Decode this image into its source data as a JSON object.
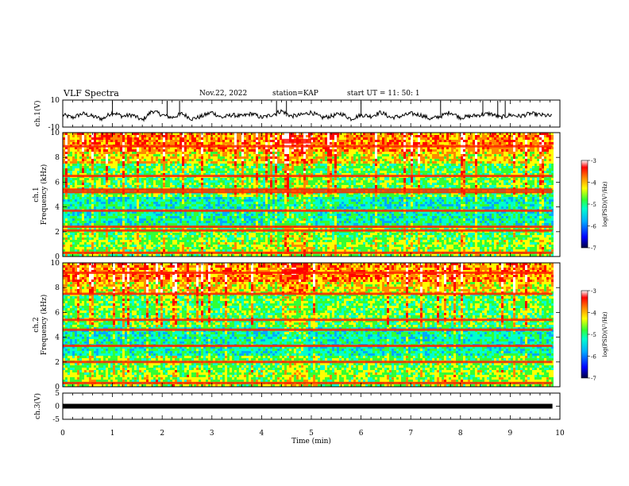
{
  "header": {
    "title": "VLF Spectra",
    "date": "Nov.22, 2022",
    "station": "station=KAP",
    "start": "start  UT =   11: 50: 1"
  },
  "chart_data": [
    {
      "type": "line",
      "panel": "ch1-waveform",
      "ylabel": "ch.1(V)",
      "ylim": [
        -10,
        10
      ],
      "y_ticks": [
        "10",
        "-10"
      ],
      "x_range_min": [
        0,
        9.85
      ],
      "series": [
        {
          "color": "#000000",
          "x": [
            0,
            0.2,
            0.4,
            0.6,
            0.8,
            1.0,
            1.2,
            1.4,
            1.6,
            1.8,
            2.0,
            2.2,
            2.4,
            2.6,
            2.8,
            3.0,
            3.2,
            3.4,
            3.6,
            3.8,
            4.0,
            4.2,
            4.4,
            4.6,
            4.8,
            5.0,
            5.2,
            5.4,
            5.6,
            5.8,
            6.0,
            6.2,
            6.4,
            6.6,
            6.8,
            7.0,
            7.2,
            7.4,
            7.6,
            7.8,
            8.0,
            8.2,
            8.4,
            8.6,
            8.8,
            9.0,
            9.2,
            9.4,
            9.6,
            9.85
          ],
          "values": [
            -1,
            -3,
            0,
            -2,
            -4,
            1,
            -2,
            -1,
            -5,
            2,
            -1,
            -3,
            0,
            -4,
            -2,
            1,
            -3,
            -1,
            -2,
            0,
            -3,
            -1,
            2,
            -2,
            -1,
            1,
            -3,
            -2,
            0,
            -4,
            -1,
            -2,
            1,
            -3,
            -2,
            0,
            -1,
            -4,
            -2,
            1,
            -3,
            -2,
            -1,
            0,
            -3,
            -1,
            -2,
            0,
            -1,
            -2
          ]
        }
      ],
      "spikes": [
        1.0,
        2.1,
        2.35,
        4.3,
        4.5,
        6.0,
        7.6,
        8.45,
        8.75,
        8.9
      ]
    },
    {
      "type": "heatmap",
      "panel": "ch1-spectrogram",
      "ylabel": "ch.1 Frequency (kHz)",
      "ylim_khz": [
        0,
        10
      ],
      "y_ticks": [
        "0",
        "2",
        "4",
        "6",
        "8",
        "10"
      ],
      "bands_khz": [
        0.3,
        2.1,
        2.4,
        3.7,
        5.2,
        5.4,
        6.5,
        8.9
      ],
      "bright_interval_min": [
        4.4,
        5.0
      ]
    },
    {
      "type": "heatmap",
      "panel": "ch2-spectrogram",
      "ylabel": "ch.2 Frequency (kHz)",
      "ylim_khz": [
        0,
        10
      ],
      "y_ticks": [
        "0",
        "2",
        "4",
        "6",
        "8",
        "10"
      ],
      "bands_khz": [
        0.3,
        2.0,
        3.3,
        4.6,
        5.4,
        7.5,
        9.2
      ],
      "bright_interval_min": [
        4.4,
        4.9
      ]
    },
    {
      "type": "line",
      "panel": "ch3-waveform",
      "ylabel": "ch.3(V)",
      "ylim": [
        -5,
        5
      ],
      "y_ticks": [
        "5",
        "0",
        "-5"
      ],
      "series": [
        {
          "color": "#000000",
          "x": [
            0,
            9.85
          ],
          "values": [
            0,
            0
          ]
        }
      ],
      "xlabel": "Time (min)",
      "xlim": [
        0,
        10
      ],
      "x_ticks": [
        "0",
        "1",
        "2",
        "3",
        "4",
        "5",
        "6",
        "7",
        "8",
        "9",
        "10"
      ]
    }
  ],
  "colorbars": [
    {
      "label": "log(PSD)(V²/Hz)",
      "ticks": [
        "-3",
        "-4",
        "-5",
        "-6",
        "-7"
      ],
      "range": [
        -7,
        -3
      ]
    },
    {
      "label": "log(PSD)(V²/Hz)",
      "ticks": [
        "-3",
        "-4",
        "-5",
        "-6",
        "-7"
      ],
      "range": [
        -7,
        -3
      ]
    }
  ],
  "colors": {
    "scale": [
      "#000080",
      "#0000ff",
      "#00aaff",
      "#00ffcc",
      "#33ff33",
      "#ffff00",
      "#ff8800",
      "#ff0000",
      "#ffffff"
    ]
  }
}
